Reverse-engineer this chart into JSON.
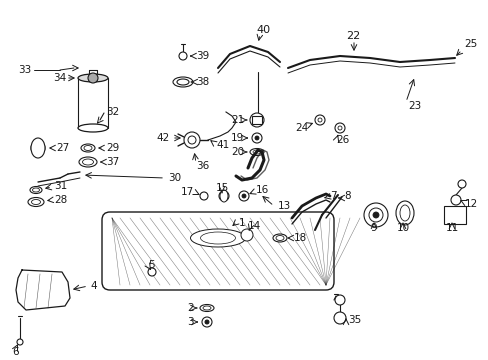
{
  "bg_color": "#ffffff",
  "line_color": "#1a1a1a",
  "figsize": [
    4.89,
    3.6
  ],
  "dpi": 100,
  "labels": {
    "1": [
      238,
      218,
      245,
      225
    ],
    "2": [
      207,
      308,
      196,
      308
    ],
    "3": [
      207,
      322,
      196,
      322
    ],
    "4": [
      88,
      285,
      95,
      278
    ],
    "5": [
      150,
      268,
      155,
      276
    ],
    "6": [
      18,
      348,
      18,
      340
    ],
    "7": [
      318,
      202,
      325,
      198
    ],
    "8": [
      338,
      208,
      344,
      212
    ],
    "9": [
      374,
      226,
      374,
      220
    ],
    "10": [
      402,
      226,
      402,
      220
    ],
    "11": [
      455,
      222,
      455,
      216
    ],
    "12": [
      461,
      208,
      455,
      208
    ],
    "13": [
      280,
      212,
      272,
      218
    ],
    "14": [
      247,
      230,
      241,
      225
    ],
    "15": [
      224,
      196,
      224,
      202
    ],
    "16": [
      258,
      195,
      252,
      200
    ],
    "17": [
      202,
      198,
      209,
      202
    ],
    "18": [
      286,
      238,
      278,
      238
    ],
    "19": [
      246,
      140,
      252,
      145
    ],
    "20": [
      246,
      154,
      252,
      154
    ],
    "21": [
      246,
      128,
      252,
      132
    ],
    "22": [
      348,
      42,
      348,
      48
    ],
    "23": [
      406,
      110,
      400,
      114
    ],
    "24": [
      316,
      130,
      322,
      128
    ],
    "25": [
      464,
      48,
      458,
      54
    ],
    "26": [
      336,
      138,
      336,
      132
    ],
    "27": [
      54,
      154,
      46,
      154
    ],
    "28": [
      54,
      172,
      46,
      172
    ],
    "29": [
      100,
      148,
      92,
      148
    ],
    "30": [
      168,
      178,
      160,
      178
    ],
    "31": [
      54,
      164,
      46,
      164
    ],
    "32": [
      104,
      106,
      96,
      112
    ],
    "33": [
      18,
      70,
      30,
      70
    ],
    "34": [
      52,
      72,
      56,
      78
    ],
    "35": [
      344,
      328,
      338,
      322
    ],
    "36": [
      194,
      172,
      194,
      168
    ],
    "37": [
      100,
      160,
      92,
      160
    ],
    "38": [
      194,
      90,
      200,
      90
    ],
    "39": [
      194,
      64,
      200,
      64
    ],
    "40": [
      256,
      32,
      256,
      40
    ],
    "41": [
      216,
      142,
      210,
      142
    ],
    "42": [
      178,
      138,
      172,
      138
    ]
  }
}
